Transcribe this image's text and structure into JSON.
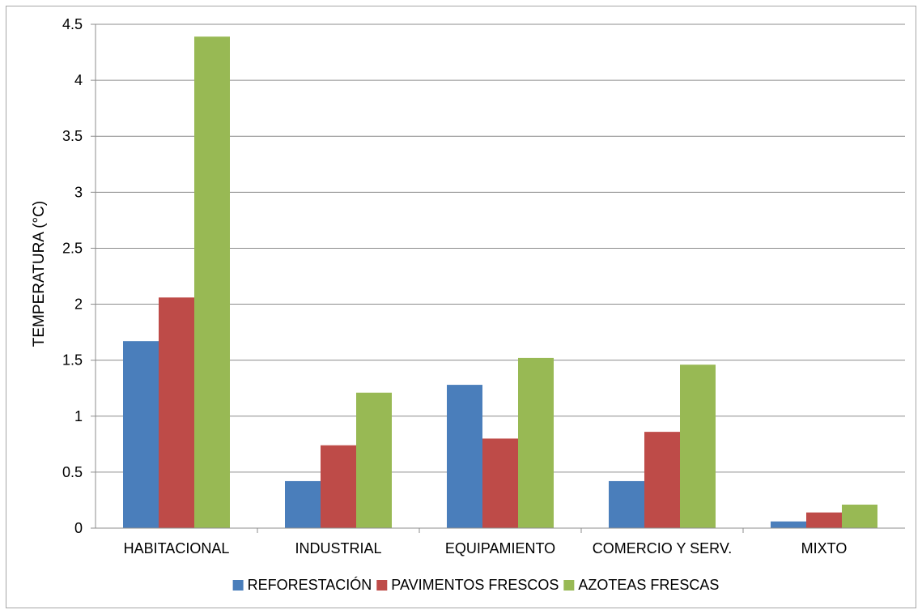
{
  "chart_data": {
    "type": "bar",
    "title": "",
    "xlabel": "",
    "ylabel": "TEMPERATURA (°C)",
    "ylim": [
      0,
      4.5
    ],
    "yticks": [
      "0",
      "0.5",
      "1",
      "1.5",
      "2",
      "2.5",
      "3",
      "3.5",
      "4",
      "4.5"
    ],
    "grid": true,
    "legend_position": "bottom",
    "categories": [
      "HABITACIONAL",
      "INDUSTRIAL",
      "EQUIPAMIENTO",
      "COMERCIO Y SERV.",
      "MIXTO"
    ],
    "series": [
      {
        "name": "REFORESTACIÓN",
        "color": "#4a7ebb",
        "values": [
          1.67,
          0.42,
          1.28,
          0.42,
          0.06
        ]
      },
      {
        "name": "PAVIMENTOS FRESCOS",
        "color": "#be4b48",
        "values": [
          2.06,
          0.74,
          0.8,
          0.86,
          0.14
        ]
      },
      {
        "name": "AZOTEAS FRESCAS",
        "color": "#98b954",
        "values": [
          4.39,
          1.21,
          1.52,
          1.46,
          0.21
        ]
      }
    ]
  }
}
